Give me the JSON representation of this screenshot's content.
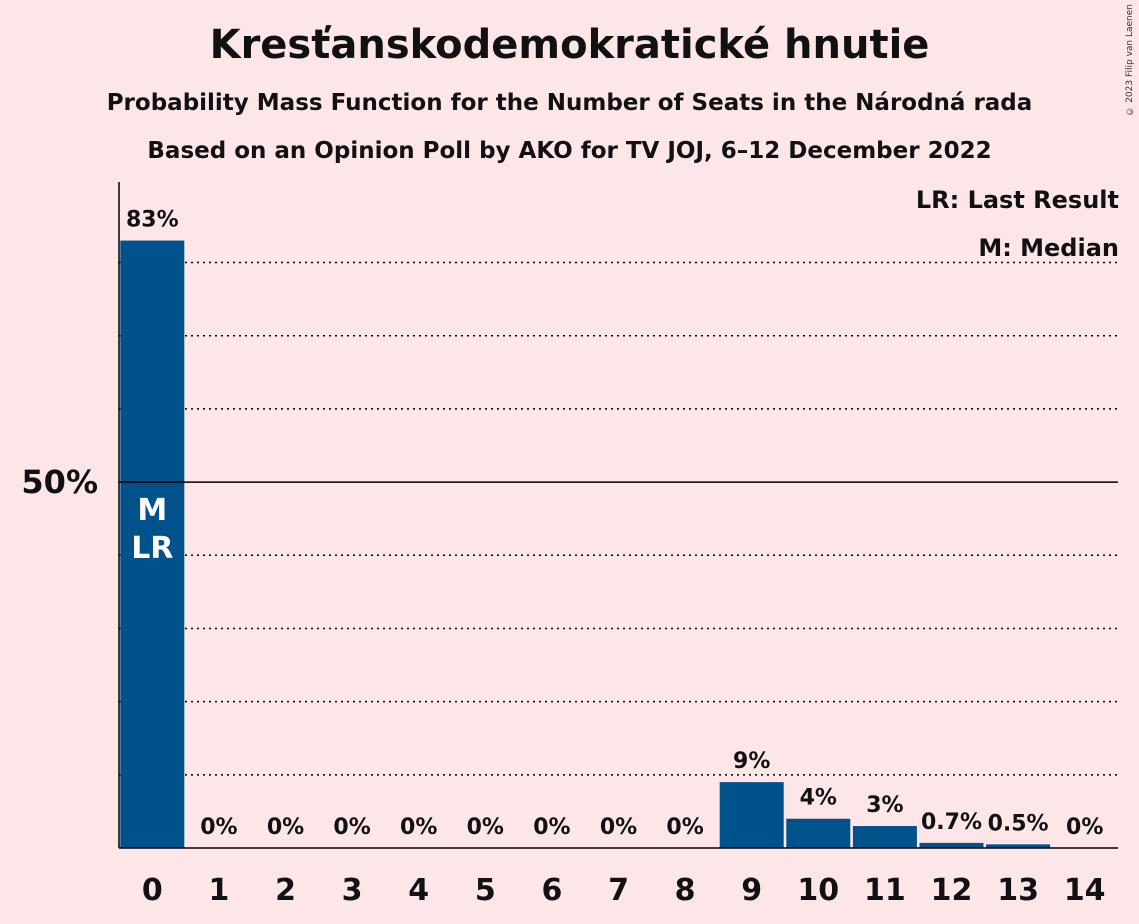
{
  "chart_data": {
    "type": "bar",
    "title": "Kresťanskodemokratické hnutie",
    "subtitle": "Probability Mass Function for the Number of Seats in the Národná rada",
    "subtitle2": "Based on an Opinion Poll by AKO for TV JOJ, 6–12 December 2022",
    "copyright": "© 2023 Filip van Laenen",
    "legend": [
      "LR: Last Result",
      "M: Median"
    ],
    "categories": [
      "0",
      "1",
      "2",
      "3",
      "4",
      "5",
      "6",
      "7",
      "8",
      "9",
      "10",
      "11",
      "12",
      "13",
      "14"
    ],
    "values": [
      83,
      0,
      0,
      0,
      0,
      0,
      0,
      0,
      0,
      9,
      4,
      3,
      0.7,
      0.5,
      0
    ],
    "data_labels": [
      "83%",
      "0%",
      "0%",
      "0%",
      "0%",
      "0%",
      "0%",
      "0%",
      "0%",
      "9%",
      "4%",
      "3%",
      "0.7%",
      "0.5%",
      "0%"
    ],
    "ylim": [
      0,
      91
    ],
    "y_tick_label": "50%",
    "y_tick_value": 50,
    "gridlines": [
      10,
      20,
      30,
      40,
      60,
      70,
      80
    ],
    "bar_markers": [
      {
        "category": "0",
        "label_lines": [
          "M",
          "LR"
        ]
      }
    ],
    "colors": {
      "bar": "#00538a",
      "background": "#fde6e7",
      "axis": "#000000"
    }
  }
}
